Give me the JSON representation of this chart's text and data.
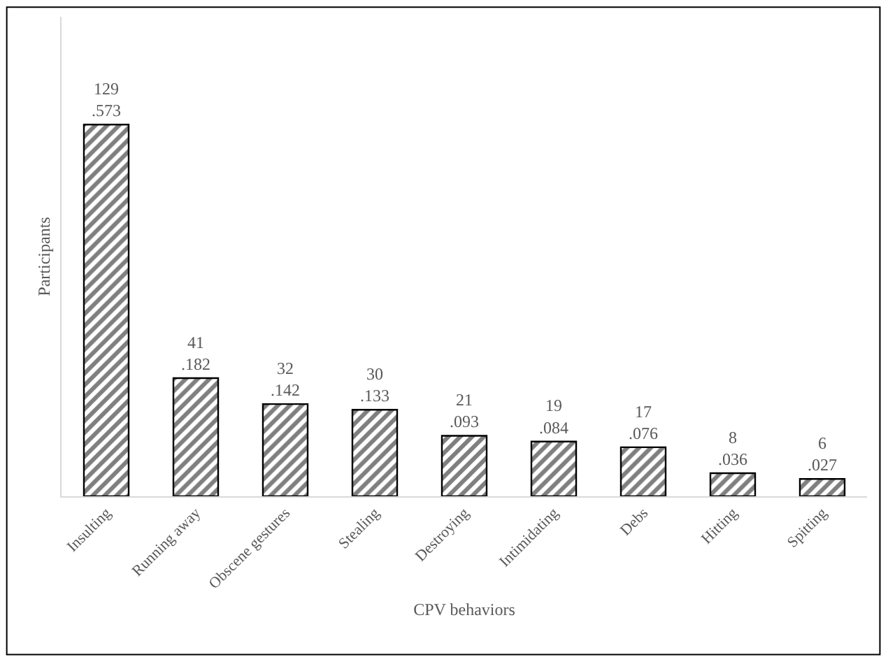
{
  "chart_data": {
    "type": "bar",
    "xlabel": "CPV behaviors",
    "ylabel": "Participants",
    "categories": [
      "Insulting",
      "Running away",
      "Obscene gestures",
      "Stealing",
      "Destroying",
      "Intimidating",
      "Debs",
      "Hitting",
      "Spitting"
    ],
    "series": [
      {
        "color": "#000000",
        "values": [
          129,
          41,
          32,
          30,
          21,
          19,
          17,
          8,
          6
        ],
        "value_labels": [
          "129\n.573",
          "41\n.182",
          "32\n.142",
          "30\n.133",
          "21\n.093",
          "19\n.084",
          "17\n.076",
          "8\n.036",
          "6\n.027"
        ]
      }
    ],
    "legend": false
  }
}
